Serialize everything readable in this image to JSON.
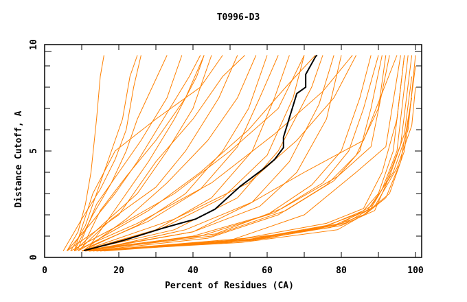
{
  "chart_data": {
    "type": "line",
    "title": "T0996-D3",
    "xlabel": "Percent of Residues (CA)",
    "ylabel": "Distance Cutoff, A",
    "xlim": [
      0,
      101.6
    ],
    "ylim": [
      0,
      10
    ],
    "xticks": [
      "0",
      "20",
      "40",
      "60",
      "80",
      "100"
    ],
    "yticks": [
      "0",
      "5",
      "10"
    ],
    "grid": false,
    "colors": {
      "models": "#ff8000",
      "highlight": "#000000"
    },
    "highlight_series": {
      "name": "highlighted model",
      "points": [
        [
          10.6,
          0.32
        ],
        [
          21.3,
          0.8
        ],
        [
          32.4,
          1.4
        ],
        [
          40.7,
          1.8
        ],
        [
          45.9,
          2.26
        ],
        [
          52.8,
          3.35
        ],
        [
          59.3,
          4.2
        ],
        [
          62,
          4.6
        ],
        [
          64.4,
          5.16
        ],
        [
          64.4,
          5.65
        ],
        [
          68,
          7.7
        ],
        [
          70.4,
          8.0
        ],
        [
          70.4,
          8.6
        ],
        [
          73.1,
          9.45
        ],
        [
          73.5,
          9.5
        ]
      ]
    },
    "series": [
      [
        [
          6,
          0.3
        ],
        [
          9,
          1.2
        ],
        [
          11,
          2.5
        ],
        [
          12.5,
          4
        ],
        [
          14,
          6.5
        ],
        [
          15,
          8.5
        ],
        [
          16,
          9.5
        ]
      ],
      [
        [
          7,
          0.3
        ],
        [
          11,
          1.5
        ],
        [
          14,
          3
        ],
        [
          17,
          4.5
        ],
        [
          21,
          6.5
        ],
        [
          23,
          8.5
        ],
        [
          25,
          9.5
        ]
      ],
      [
        [
          5,
          0.3
        ],
        [
          10,
          1.8
        ],
        [
          15,
          3.2
        ],
        [
          19,
          4.6
        ],
        [
          22,
          6
        ],
        [
          24,
          8
        ],
        [
          26,
          9.5
        ]
      ],
      [
        [
          8,
          0.3
        ],
        [
          13,
          2
        ],
        [
          18,
          3.5
        ],
        [
          22,
          5
        ],
        [
          25,
          6.5
        ],
        [
          29,
          8
        ],
        [
          33,
          9.5
        ]
      ],
      [
        [
          9,
          0.4
        ],
        [
          14,
          2.5
        ],
        [
          20,
          4
        ],
        [
          26,
          5.5
        ],
        [
          33,
          7.5
        ],
        [
          37,
          9.5
        ]
      ],
      [
        [
          6,
          0.3
        ],
        [
          12,
          1.5
        ],
        [
          19,
          3
        ],
        [
          25,
          4.5
        ],
        [
          32,
          6.5
        ],
        [
          39,
          8.5
        ],
        [
          42,
          9.5
        ]
      ],
      [
        [
          10,
          0.4
        ],
        [
          15,
          2.2
        ],
        [
          22,
          3.8
        ],
        [
          30,
          5.5
        ],
        [
          38,
          7.5
        ],
        [
          43,
          9.5
        ]
      ],
      [
        [
          8,
          0.3
        ],
        [
          16,
          1.6
        ],
        [
          25,
          3
        ],
        [
          33,
          5
        ],
        [
          40,
          7
        ],
        [
          45,
          9.5
        ]
      ],
      [
        [
          12,
          0.5
        ],
        [
          20,
          2.5
        ],
        [
          28,
          4.5
        ],
        [
          35,
          6.5
        ],
        [
          41,
          8.5
        ],
        [
          43,
          9.5
        ]
      ],
      [
        [
          9,
          0.3
        ],
        [
          18,
          1.8
        ],
        [
          30,
          3.3
        ],
        [
          38,
          5
        ],
        [
          47,
          7.5
        ],
        [
          52,
          9.5
        ]
      ],
      [
        [
          11,
          0.4
        ],
        [
          22,
          1.8
        ],
        [
          33,
          3.5
        ],
        [
          44,
          5.5
        ],
        [
          52,
          7.5
        ],
        [
          57,
          9.5
        ]
      ],
      [
        [
          10,
          0.3
        ],
        [
          25,
          1.5
        ],
        [
          38,
          3
        ],
        [
          48,
          5
        ],
        [
          55,
          7
        ],
        [
          60,
          9.5
        ]
      ],
      [
        [
          12,
          0.5
        ],
        [
          28,
          1.7
        ],
        [
          42,
          3.2
        ],
        [
          52,
          5.2
        ],
        [
          58,
          7.5
        ],
        [
          63,
          9.5
        ]
      ],
      [
        [
          10,
          0.3
        ],
        [
          30,
          1.3
        ],
        [
          45,
          2.8
        ],
        [
          56,
          5
        ],
        [
          62,
          7.5
        ],
        [
          66,
          9.5
        ]
      ],
      [
        [
          11,
          0.3
        ],
        [
          32,
          1.4
        ],
        [
          48,
          2.8
        ],
        [
          60,
          4.8
        ],
        [
          67,
          7.5
        ],
        [
          70,
          9.5
        ]
      ],
      [
        [
          10,
          0.3
        ],
        [
          35,
          1.3
        ],
        [
          52,
          2.8
        ],
        [
          63,
          5
        ],
        [
          72,
          8
        ],
        [
          75,
          9.5
        ]
      ],
      [
        [
          12,
          0.3
        ],
        [
          38,
          1.3
        ],
        [
          56,
          2.6
        ],
        [
          66,
          4.5
        ],
        [
          74,
          7.2
        ],
        [
          78,
          9.5
        ]
      ],
      [
        [
          11,
          0.3
        ],
        [
          40,
          1.2
        ],
        [
          58,
          2.4
        ],
        [
          68,
          4
        ],
        [
          76,
          6.5
        ],
        [
          80,
          9.5
        ]
      ],
      [
        [
          10,
          0.3
        ],
        [
          40,
          1.0
        ],
        [
          60,
          2.0
        ],
        [
          72,
          3.4
        ],
        [
          80,
          5
        ],
        [
          85,
          7.5
        ],
        [
          88,
          9.5
        ]
      ],
      [
        [
          11,
          0.3
        ],
        [
          42,
          1.0
        ],
        [
          62,
          2.1
        ],
        [
          75,
          3.5
        ],
        [
          82,
          5
        ],
        [
          86,
          7
        ],
        [
          90,
          9.5
        ]
      ],
      [
        [
          12,
          0.3
        ],
        [
          44,
          0.9
        ],
        [
          63,
          2.0
        ],
        [
          76,
          3.4
        ],
        [
          84,
          4.8
        ],
        [
          90,
          7
        ],
        [
          92,
          9.5
        ]
      ],
      [
        [
          10,
          0.3
        ],
        [
          45,
          1.0
        ],
        [
          65,
          2.2
        ],
        [
          78,
          3.6
        ],
        [
          85,
          5
        ],
        [
          88,
          7
        ],
        [
          91,
          9.5
        ]
      ],
      [
        [
          13,
          0.4
        ],
        [
          46,
          1.1
        ],
        [
          64,
          2.3
        ],
        [
          79,
          3.8
        ],
        [
          88,
          5.2
        ],
        [
          93,
          9.5
        ]
      ],
      [
        [
          10,
          0.3
        ],
        [
          40,
          1.2
        ],
        [
          55,
          2.5
        ],
        [
          70,
          4
        ],
        [
          86,
          5.5
        ],
        [
          95,
          9.5
        ]
      ],
      [
        [
          15,
          0.3
        ],
        [
          50,
          0.8
        ],
        [
          70,
          2
        ],
        [
          84,
          4
        ],
        [
          92,
          5.2
        ],
        [
          96,
          9.5
        ]
      ],
      [
        [
          12,
          0.3
        ],
        [
          50,
          0.7
        ],
        [
          75,
          1.4
        ],
        [
          86,
          2.2
        ],
        [
          90,
          3
        ],
        [
          94,
          5
        ],
        [
          97,
          9.5
        ]
      ],
      [
        [
          13,
          0.3
        ],
        [
          52,
          0.75
        ],
        [
          76,
          1.5
        ],
        [
          87,
          2.2
        ],
        [
          91,
          3.2
        ],
        [
          95,
          5
        ],
        [
          98,
          9.5
        ]
      ],
      [
        [
          14,
          0.3
        ],
        [
          55,
          0.8
        ],
        [
          78,
          1.5
        ],
        [
          88,
          2.3
        ],
        [
          92,
          3.5
        ],
        [
          96,
          5.3
        ],
        [
          99,
          9.5
        ]
      ],
      [
        [
          11,
          0.3
        ],
        [
          50,
          0.8
        ],
        [
          77,
          1.4
        ],
        [
          86,
          2
        ],
        [
          93,
          3
        ],
        [
          97,
          5
        ],
        [
          100,
          9
        ]
      ],
      [
        [
          15,
          0.3
        ],
        [
          58,
          0.9
        ],
        [
          80,
          1.6
        ],
        [
          88,
          2.4
        ],
        [
          94,
          4
        ],
        [
          98,
          6
        ],
        [
          100,
          9.5
        ]
      ],
      [
        [
          12,
          0.3
        ],
        [
          53,
          0.7
        ],
        [
          79,
          1.3
        ],
        [
          87,
          2.1
        ],
        [
          92,
          2.8
        ],
        [
          96,
          4.5
        ],
        [
          99,
          7.5
        ]
      ],
      [
        [
          16,
          0.3
        ],
        [
          56,
          0.8
        ],
        [
          80,
          1.5
        ],
        [
          89,
          2.2
        ],
        [
          93,
          3.8
        ],
        [
          97,
          5.8
        ],
        [
          99,
          8.5
        ]
      ],
      [
        [
          13,
          0.3
        ],
        [
          54,
          0.9
        ],
        [
          76,
          1.6
        ],
        [
          86,
          2.3
        ],
        [
          91,
          4
        ],
        [
          95,
          6.5
        ],
        [
          97,
          9.5
        ]
      ],
      [
        [
          14,
          0.3
        ],
        [
          60,
          0.9
        ],
        [
          81,
          1.6
        ],
        [
          89,
          2.4
        ],
        [
          95,
          4.2
        ],
        [
          99,
          6.2
        ],
        [
          100,
          8
        ]
      ],
      [
        [
          6,
          0.3
        ],
        [
          20,
          2
        ],
        [
          30,
          4.5
        ],
        [
          40,
          6.5
        ],
        [
          48,
          8.5
        ],
        [
          54,
          9.5
        ]
      ],
      [
        [
          8,
          0.3
        ],
        [
          13,
          3
        ],
        [
          19,
          5
        ],
        [
          30,
          6.5
        ],
        [
          42,
          8
        ],
        [
          48,
          9.5
        ]
      ],
      [
        [
          9,
          0.3
        ],
        [
          28,
          2.2
        ],
        [
          42,
          4
        ],
        [
          55,
          6
        ],
        [
          65,
          8
        ],
        [
          73,
          9.5
        ]
      ],
      [
        [
          7,
          0.3
        ],
        [
          20,
          1.5
        ],
        [
          35,
          3
        ],
        [
          50,
          5
        ],
        [
          63,
          7
        ],
        [
          70,
          9.5
        ]
      ],
      [
        [
          10,
          0.3
        ],
        [
          35,
          1.8
        ],
        [
          55,
          3.5
        ],
        [
          68,
          5.5
        ],
        [
          78,
          7.5
        ],
        [
          84,
          9.5
        ]
      ],
      [
        [
          8,
          0.3
        ],
        [
          25,
          1.6
        ],
        [
          45,
          3.5
        ],
        [
          62,
          5.8
        ],
        [
          75,
          7.8
        ],
        [
          83,
          9.5
        ]
      ]
    ]
  }
}
